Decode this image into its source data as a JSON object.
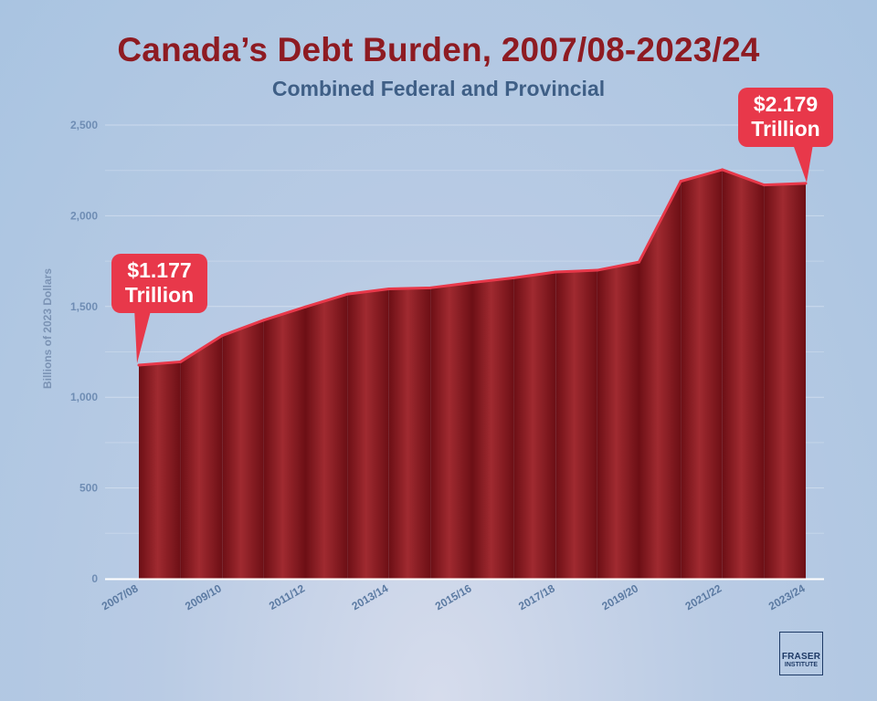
{
  "chart_data": {
    "type": "area",
    "title": "Canada’s Debt Burden, 2007/08-2023/24",
    "subtitle": "Combined Federal and Provincial",
    "ylabel": "Billions of 2023 Dollars",
    "xlabel": "",
    "ylim": [
      0,
      2500
    ],
    "yticks": [
      0,
      500,
      1000,
      1500,
      2000,
      2500
    ],
    "ytick_labels": [
      "0",
      "500",
      "1,000",
      "1,500",
      "2,000",
      "2,500"
    ],
    "x": [
      "2007/08",
      "2008/09",
      "2009/10",
      "2010/11",
      "2011/12",
      "2012/13",
      "2013/14",
      "2014/15",
      "2015/16",
      "2016/17",
      "2017/18",
      "2018/19",
      "2019/20",
      "2020/21",
      "2021/22",
      "2022/23",
      "2023/24"
    ],
    "x_tick_labels": [
      "2007/08",
      "2009/10",
      "2011/12",
      "2013/14",
      "2015/16",
      "2017/18",
      "2019/20",
      "2021/22",
      "2023/24"
    ],
    "values": [
      1177,
      1195,
      1340,
      1425,
      1498,
      1568,
      1597,
      1603,
      1632,
      1658,
      1690,
      1700,
      1745,
      2190,
      2254,
      2170,
      2179
    ],
    "grid": true,
    "colors": {
      "fill_dark": "#6d0f15",
      "fill_light": "#a02a30",
      "line": "#e8384a",
      "axis_text": "#5b7aa2"
    },
    "annotations": [
      {
        "line1": "$1.177",
        "line2": "Trillion",
        "target": "2007/08"
      },
      {
        "line1": "$2.179",
        "line2": "Trillion",
        "target": "2023/24"
      }
    ]
  },
  "logo": {
    "line1": "FRASER",
    "line2": "INSTITUTE"
  }
}
